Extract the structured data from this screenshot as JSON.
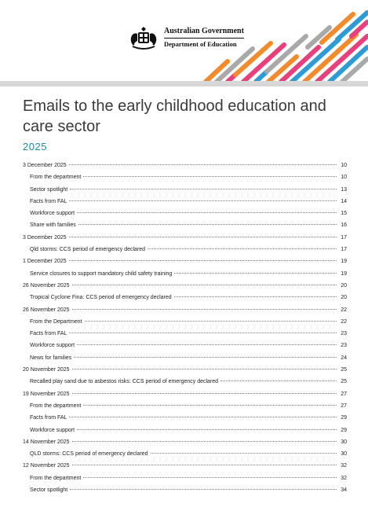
{
  "header": {
    "gov_line1": "Australian Government",
    "gov_line2": "Department of Education"
  },
  "document": {
    "title": "Emails to the early childhood education and care sector",
    "year": "2025"
  },
  "toc": [
    {
      "label": "3 December 2025",
      "page": "10",
      "level": 1
    },
    {
      "label": "From the department",
      "page": "10",
      "level": 2
    },
    {
      "label": "Sector spotlight",
      "page": "13",
      "level": 2
    },
    {
      "label": "Facts from FAL",
      "page": "14",
      "level": 2
    },
    {
      "label": "Workforce support",
      "page": "15",
      "level": 2
    },
    {
      "label": "Share with families",
      "page": "16",
      "level": 2
    },
    {
      "label": "3 December 2025",
      "page": "17",
      "level": 1
    },
    {
      "label": "Qld storms: CCS period of emergency declared",
      "page": "17",
      "level": 2
    },
    {
      "label": "1 December 2025",
      "page": "19",
      "level": 1
    },
    {
      "label": "Service closures to support mandatory child safety training",
      "page": "19",
      "level": 2
    },
    {
      "label": "26 November 2025",
      "page": "20",
      "level": 1
    },
    {
      "label": "Tropical Cyclone Fina: CCS period of emergency declared",
      "page": "20",
      "level": 2
    },
    {
      "label": "26 November 2025",
      "page": "22",
      "level": 1
    },
    {
      "label": "From the Department",
      "page": "22",
      "level": 2
    },
    {
      "label": "Facts from FAL",
      "page": "23",
      "level": 2
    },
    {
      "label": "Workforce support",
      "page": "23",
      "level": 2
    },
    {
      "label": "News for families",
      "page": "24",
      "level": 2
    },
    {
      "label": "20 November 2025",
      "page": "25",
      "level": 1
    },
    {
      "label": "Recalled play sand due to asbestos risks: CCS period of emergency declared",
      "page": "25",
      "level": 2
    },
    {
      "label": "19 November 2025",
      "page": "27",
      "level": 1
    },
    {
      "label": "From the department",
      "page": "27",
      "level": 2
    },
    {
      "label": "Facts from FAL",
      "page": "29",
      "level": 2
    },
    {
      "label": "Workforce support",
      "page": "29",
      "level": 2
    },
    {
      "label": "14 November 2025",
      "page": "30",
      "level": 1
    },
    {
      "label": "QLD storms: CCS period of emergency declared",
      "page": "30",
      "level": 2
    },
    {
      "label": "12 November 2025",
      "page": "32",
      "level": 1
    },
    {
      "label": "From the department",
      "page": "32",
      "level": 2
    },
    {
      "label": "Sector spotlight",
      "page": "34",
      "level": 2
    }
  ],
  "colors": {
    "accent_teal": "#1f8aa0",
    "stripe_orange": "#f28b2c",
    "stripe_pink": "#e8407a",
    "stripe_blue": "#2e9bd6",
    "stripe_grey": "#a9a9a9"
  }
}
